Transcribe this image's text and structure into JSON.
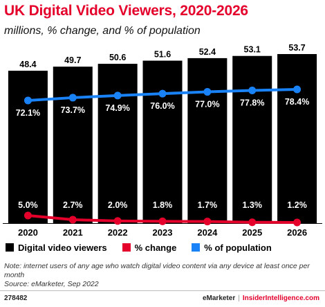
{
  "header": {
    "title": "UK Digital Video Viewers, 2020-2026",
    "subtitle": "millions, % change, and % of population"
  },
  "chart_data": {
    "type": "bar",
    "categories": [
      "2020",
      "2021",
      "2022",
      "2023",
      "2024",
      "2025",
      "2026"
    ],
    "series": [
      {
        "name": "Digital video viewers",
        "type": "bar",
        "values": [
          48.4,
          49.7,
          50.6,
          51.6,
          52.4,
          53.1,
          53.7
        ],
        "labels": [
          "48.4",
          "49.7",
          "50.6",
          "51.6",
          "52.4",
          "53.1",
          "53.7"
        ],
        "color": "#000000"
      },
      {
        "name": "% change",
        "type": "line",
        "values": [
          5.0,
          2.7,
          2.0,
          1.8,
          1.7,
          1.3,
          1.2
        ],
        "labels": [
          "5.0%",
          "2.7%",
          "2.0%",
          "1.8%",
          "1.7%",
          "1.3%",
          "1.2%"
        ],
        "color": "#e4002b"
      },
      {
        "name": "% of population",
        "type": "line",
        "values": [
          72.1,
          73.7,
          74.9,
          76.0,
          77.0,
          77.8,
          78.4
        ],
        "labels": [
          "72.1%",
          "73.7%",
          "74.9%",
          "76.0%",
          "77.0%",
          "77.8%",
          "78.4%"
        ],
        "color": "#1a82f7"
      }
    ],
    "grid": false,
    "legend_position": "bottom"
  },
  "legend": {
    "items": [
      {
        "label": "Digital video viewers",
        "color": "#000000"
      },
      {
        "label": "% change",
        "color": "#e4002b"
      },
      {
        "label": "% of population",
        "color": "#1a82f7"
      }
    ]
  },
  "footer": {
    "note": "Note: internet users of any age who watch digital video content via any device at least once per month",
    "source": "Source: eMarketer, Sep 2022",
    "code": "278482",
    "brand_left": "eMarketer",
    "brand_sep": "|",
    "brand_right": "InsiderIntelligence.com"
  }
}
